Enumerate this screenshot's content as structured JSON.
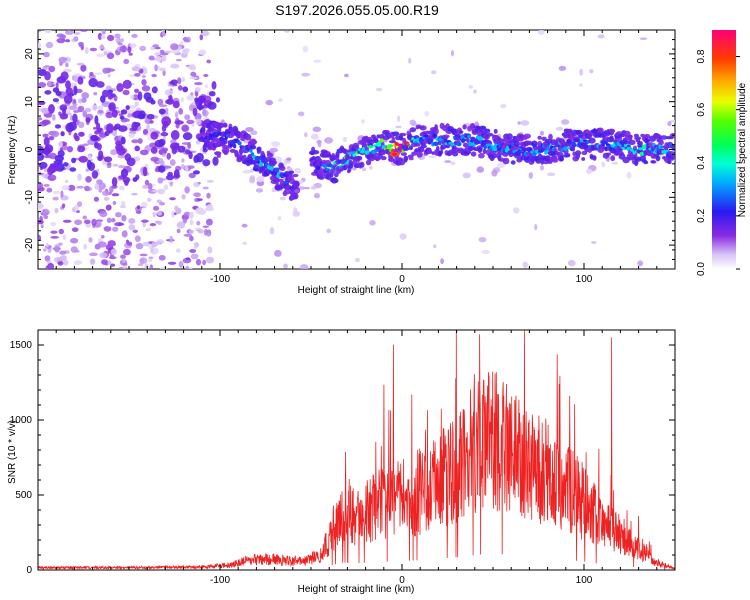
{
  "title": "S197.2026.055.05.00.R19",
  "colors": {
    "snr_line": "#ee2222",
    "blob_dark": "#7a1ef0",
    "blob_light": "#c9a6f5"
  },
  "chart_data": [
    {
      "type": "heatmap",
      "name": "spectrogram",
      "xlabel": "Height of straight line (km)",
      "ylabel": "Frequency (Hz)",
      "xlim": [
        -200,
        150
      ],
      "ylim": [
        -25,
        25
      ],
      "xticks": [
        -100,
        0,
        100
      ],
      "yticks": [
        -20,
        -10,
        0,
        10,
        20
      ],
      "colorbar": {
        "label": "Normalized spectral amplitude",
        "range": [
          0,
          0.9
        ],
        "ticks": [
          0.0,
          0.2,
          0.4,
          0.6,
          0.8
        ],
        "tick_labels": [
          "0.0",
          "0.2",
          "0.4",
          "0.6",
          "0.8"
        ]
      },
      "ridge": {
        "x": [
          -200,
          -180,
          -160,
          -140,
          -120,
          -105,
          -95,
          -85,
          -75,
          -65,
          -58,
          -50,
          -45,
          -38,
          -30,
          -20,
          -10,
          0,
          10,
          20,
          30,
          40,
          50,
          60,
          70,
          80,
          90,
          100,
          110,
          120,
          130,
          140,
          150
        ],
        "freq": [
          6,
          5,
          4,
          4,
          3,
          3,
          2,
          0,
          -3,
          -6,
          -8,
          -3,
          -3,
          -4,
          -2,
          0,
          1,
          0,
          2,
          2,
          2,
          2,
          1,
          0,
          0,
          0,
          1,
          1,
          1,
          1,
          0,
          0,
          0
        ],
        "amplitude": [
          0.05,
          0.05,
          0.05,
          0.05,
          0.06,
          0.2,
          0.25,
          0.3,
          0.3,
          0.3,
          0.15,
          0.2,
          0.2,
          0.35,
          0.45,
          0.4,
          0.5,
          0.9,
          0.3,
          0.3,
          0.3,
          0.3,
          0.3,
          0.3,
          0.3,
          0.3,
          0.3,
          0.3,
          0.3,
          0.4,
          0.4,
          0.4,
          0.3
        ]
      }
    },
    {
      "type": "line",
      "name": "snr",
      "xlabel": "Height of straight line (km)",
      "ylabel": "SNR (10 * v/v)",
      "xlim": [
        -200,
        150
      ],
      "ylim": [
        0,
        1600
      ],
      "xticks": [
        -100,
        0,
        100
      ],
      "yticks": [
        0,
        500,
        1000,
        1500
      ],
      "envelope": {
        "x": [
          -200,
          -150,
          -110,
          -95,
          -85,
          -75,
          -65,
          -55,
          -45,
          -40,
          -35,
          -30,
          -25,
          -20,
          -10,
          0,
          10,
          20,
          30,
          40,
          50,
          60,
          70,
          80,
          90,
          100,
          110,
          120,
          130,
          140,
          150
        ],
        "y": [
          20,
          20,
          25,
          40,
          80,
          90,
          80,
          70,
          120,
          250,
          450,
          500,
          450,
          500,
          550,
          600,
          650,
          750,
          850,
          1000,
          1100,
          1000,
          900,
          800,
          700,
          550,
          400,
          300,
          180,
          60,
          10
        ]
      }
    }
  ]
}
